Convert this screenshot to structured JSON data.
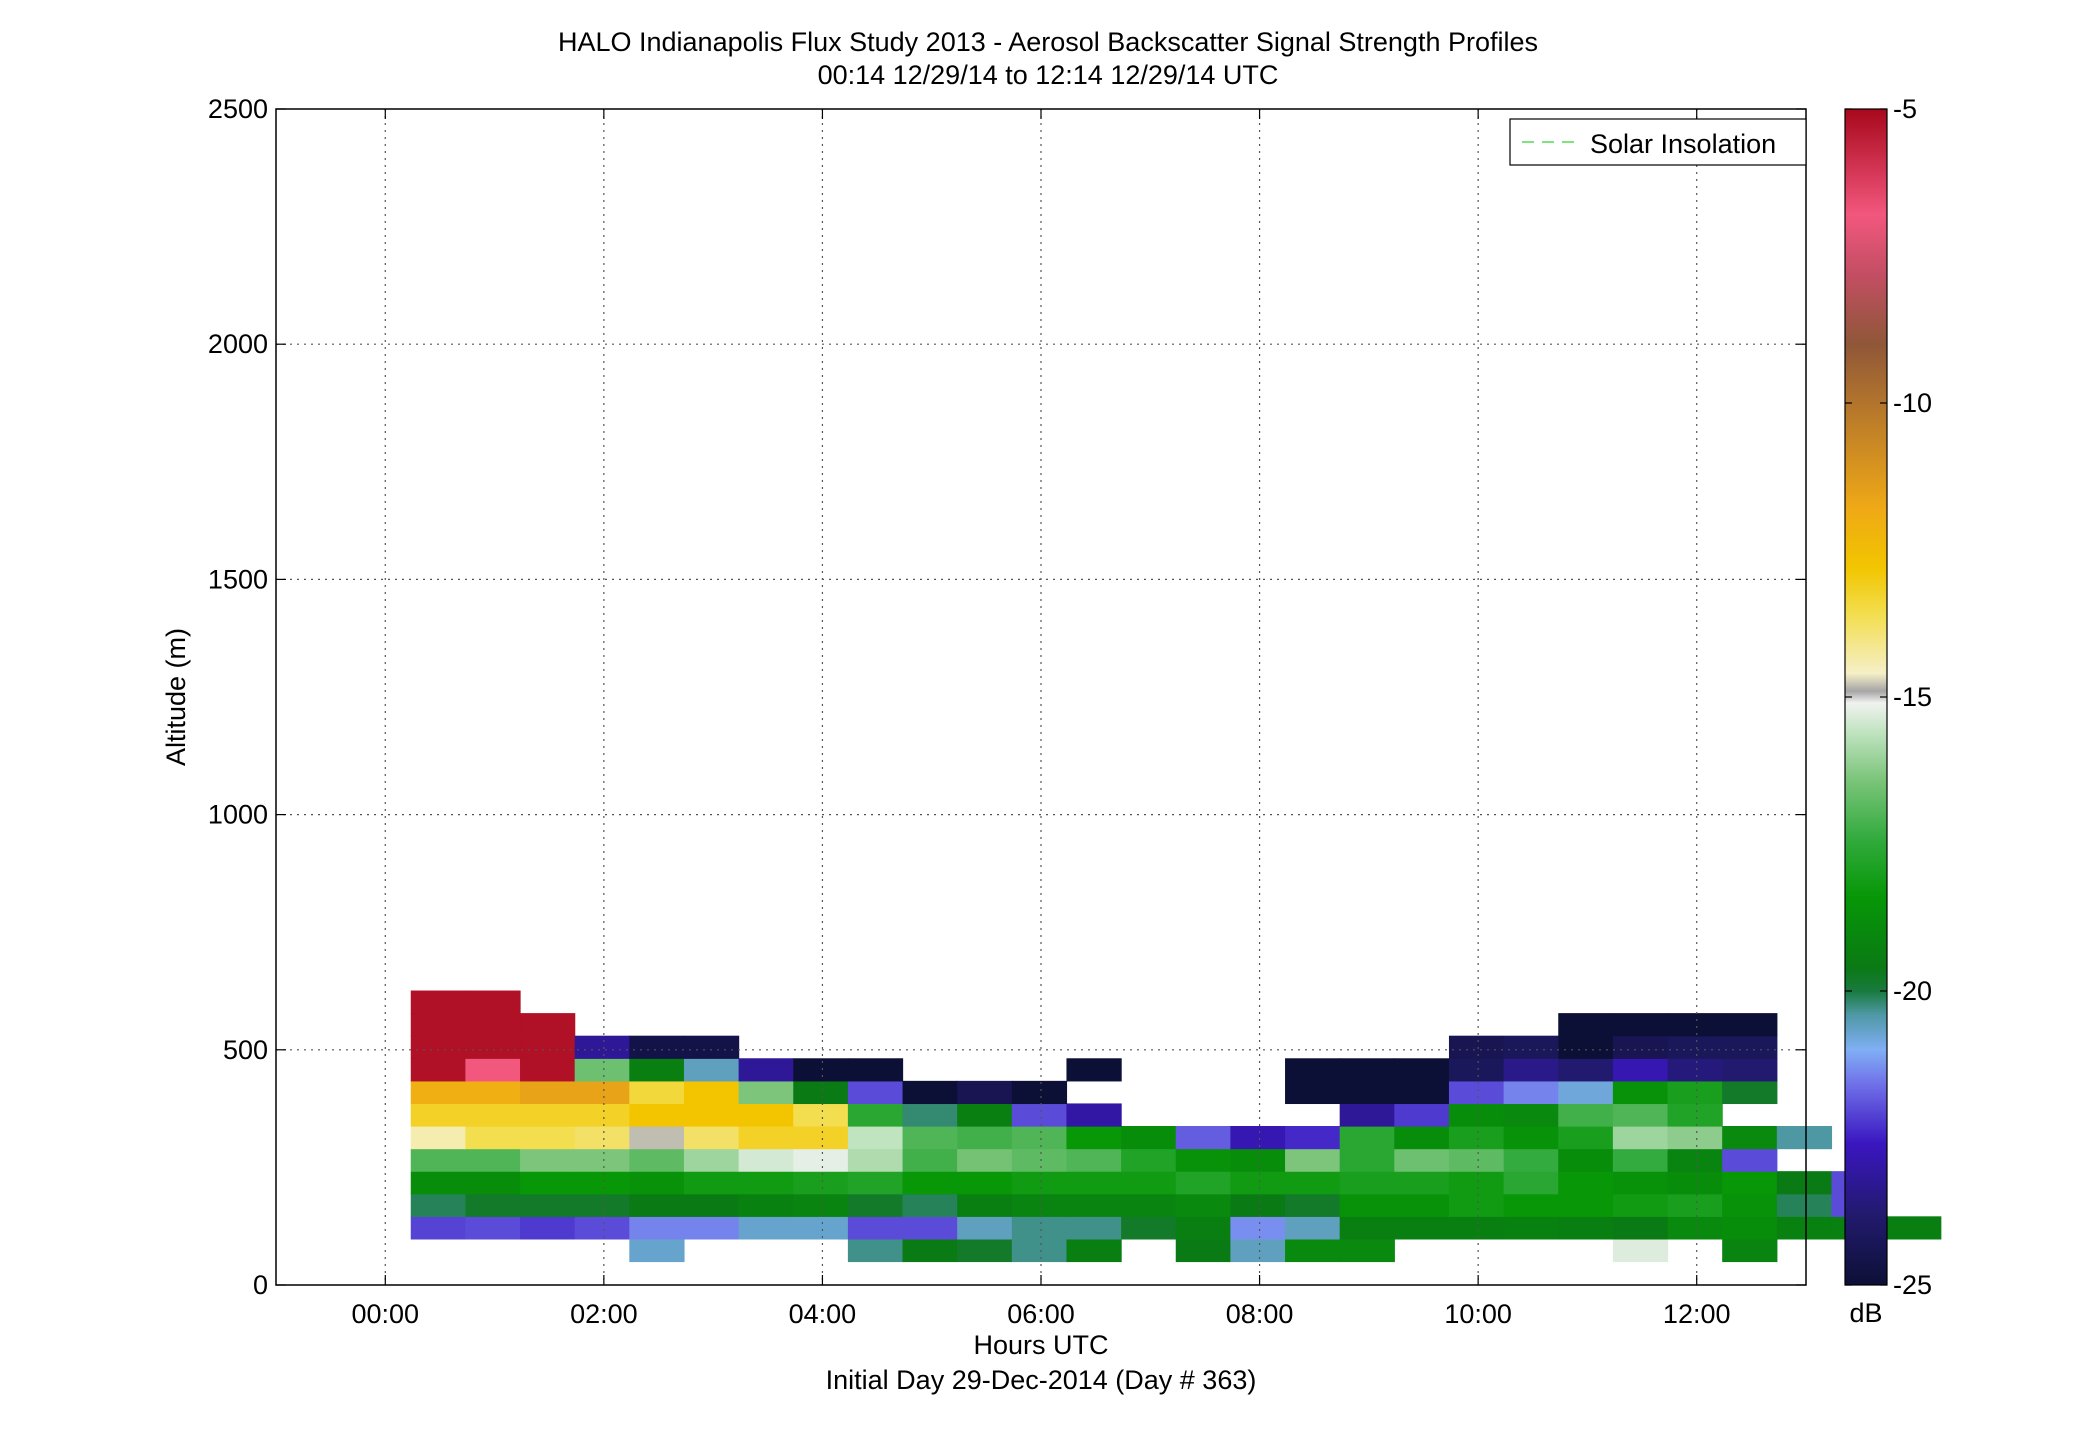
{
  "chart_data": {
    "type": "heatmap",
    "title_line1": "HALO Indianapolis Flux Study 2013 - Aerosol Backscatter Signal Strength Profiles",
    "title_line2": "00:14 12/29/14 to 12:14 12/29/14  UTC",
    "xlabel": "Hours UTC",
    "xlabel2": "Initial Day 29-Dec-2014 (Day # 363)",
    "ylabel": "Altitude (m)",
    "xlim": [
      -1,
      13
    ],
    "ylim": [
      0,
      2500
    ],
    "xticks": [
      {
        "v": 0,
        "label": "00:00"
      },
      {
        "v": 2,
        "label": "02:00"
      },
      {
        "v": 4,
        "label": "04:00"
      },
      {
        "v": 6,
        "label": "06:00"
      },
      {
        "v": 8,
        "label": "08:00"
      },
      {
        "v": 10,
        "label": "10:00"
      },
      {
        "v": 12,
        "label": "12:00"
      }
    ],
    "yticks": [
      0,
      500,
      1000,
      1500,
      2000,
      2500
    ],
    "grid": true,
    "legend": {
      "entries": [
        {
          "name": "Solar Insolation",
          "color": "#7fe37f",
          "style": "dashed"
        }
      ],
      "placement": "top-right"
    },
    "colorbar": {
      "min": -25,
      "max": -5,
      "ticks": [
        -5,
        -10,
        -15,
        -20,
        -25
      ],
      "unit": "dB"
    },
    "cell_time_start_hours": 0.233,
    "cell_time_step_hours": 0.5,
    "cell_alt_start_m": 50,
    "cell_alt_step_m": 48,
    "row_altitudes_m": [
      50,
      98,
      146,
      194,
      242,
      290,
      338,
      386,
      434,
      482,
      530,
      578
    ],
    "rows_db": [
      [
        null,
        null,
        null,
        null,
        -20.7,
        null,
        null,
        null,
        -20.3,
        -19.6,
        -19.8,
        -20.3,
        -19.4,
        null,
        -19.6,
        -20.6,
        -19.0,
        -19.0,
        null,
        null,
        null,
        null,
        -15.3,
        null,
        -19.2,
        null,
        null,
        null
      ],
      [
        -22.1,
        -22.0,
        -22.2,
        -22.0,
        -21.4,
        -21.4,
        -20.7,
        -20.7,
        -22.0,
        -22.0,
        -20.6,
        -20.3,
        -20.3,
        -19.8,
        -19.4,
        -21.3,
        -20.6,
        -19.4,
        -19.4,
        -19.4,
        -19.3,
        -19.4,
        -19.6,
        -19.0,
        -18.8,
        -19.3,
        -19.3,
        -19.4
      ],
      [
        -20.1,
        -19.8,
        -19.8,
        -19.8,
        -19.6,
        -19.6,
        -19.3,
        -19.2,
        -19.8,
        -20.1,
        -19.4,
        -19.2,
        -19.2,
        -19.2,
        -19.0,
        -19.6,
        -19.8,
        -18.6,
        -18.6,
        -18.2,
        -18.4,
        -18.4,
        -18.2,
        -18.0,
        -18.6,
        -20.1,
        -22.0
      ],
      [
        -18.8,
        -18.8,
        -18.4,
        -18.4,
        -18.6,
        -18.2,
        -18.2,
        -18.0,
        -17.8,
        -18.4,
        -18.4,
        -18.2,
        -18.2,
        -18.2,
        -17.8,
        -18.2,
        -18.2,
        -18.0,
        -18.0,
        -18.2,
        -17.6,
        -18.4,
        -18.6,
        -18.8,
        -18.4,
        -19.6,
        -22.0
      ],
      [
        -17.0,
        -17.0,
        -16.4,
        -16.4,
        -16.8,
        -16.0,
        -15.4,
        -15.2,
        -15.8,
        -17.2,
        -16.5,
        -16.8,
        -17.0,
        -17.8,
        -18.6,
        -18.8,
        -16.4,
        -17.6,
        -16.6,
        -16.8,
        -17.4,
        -18.8,
        -17.4,
        -19.2,
        -22.0
      ],
      [
        -14.4,
        -13.6,
        -13.6,
        -13.8,
        -14.8,
        -13.8,
        -13.2,
        -13.2,
        -15.6,
        -17.0,
        -17.2,
        -17.0,
        -18.4,
        -18.8,
        -21.8,
        -22.8,
        -22.4,
        -17.6,
        -18.8,
        -18.0,
        -18.6,
        -18.0,
        -16.0,
        -16.2,
        -19.0,
        -20.4
      ],
      [
        -13.2,
        -13.2,
        -13.2,
        -13.2,
        -12.8,
        -12.8,
        -12.8,
        -13.6,
        -17.6,
        -20.2,
        -19.4,
        -22.0,
        -23.0,
        null,
        null,
        null,
        null,
        -23.2,
        -22.2,
        -18.8,
        -19.0,
        -17.2,
        -17.0,
        -17.8
      ],
      [
        -12.0,
        -12.0,
        -11.6,
        -11.6,
        -13.4,
        -12.8,
        -16.4,
        -19.6,
        -22.0,
        -25.0,
        -24.4,
        -25.0,
        null,
        null,
        null,
        null,
        -25.0,
        -25.0,
        -25.0,
        -22.0,
        -21.4,
        -20.8,
        -18.6,
        -18.0,
        -19.8
      ],
      [
        -5.2,
        -6.8,
        -5.2,
        -16.6,
        -19.4,
        -20.6,
        -23.2,
        -25.0,
        -25.0,
        null,
        null,
        null,
        -25.0,
        null,
        null,
        null,
        -25.0,
        -25.0,
        -25.0,
        -24.2,
        -23.4,
        -23.8,
        -22.8,
        -23.6,
        -23.8
      ],
      [
        -5.2,
        -5.2,
        -5.2,
        -23.2,
        -24.6,
        -24.6,
        null,
        null,
        null,
        null,
        null,
        null,
        null,
        null,
        null,
        null,
        null,
        null,
        null,
        -24.4,
        -24.2,
        -25.0,
        -24.4,
        -24.2,
        -24.2
      ],
      [
        -5.2,
        -5.2,
        -5.2,
        null,
        null,
        null,
        null,
        null,
        null,
        null,
        null,
        null,
        null,
        null,
        null,
        null,
        null,
        null,
        null,
        null,
        null,
        -25.0,
        -25.0,
        -25.0,
        -25.0
      ],
      [
        -5.2,
        -5.2,
        null,
        null,
        null,
        null,
        null,
        null,
        null,
        null,
        null,
        null,
        null,
        null,
        null,
        null,
        null,
        null,
        null,
        null,
        null,
        null,
        null,
        null,
        null
      ]
    ]
  }
}
